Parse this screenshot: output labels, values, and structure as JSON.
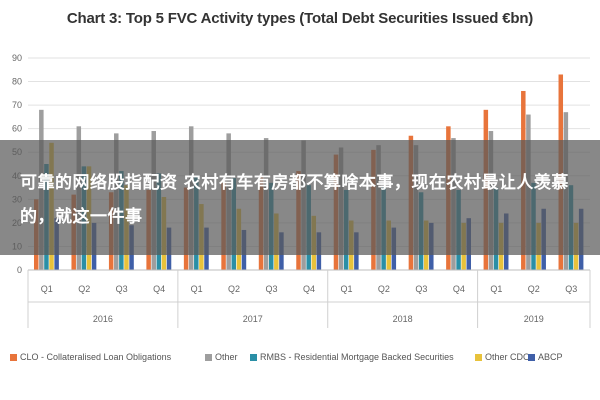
{
  "chart_data": {
    "type": "bar",
    "title": "Chart 3: Top 5 FVC Activity types (Total Debt Securities Issued €bn)",
    "xlabel": "",
    "ylabel": "",
    "ylim": [
      0,
      90
    ],
    "yticks": [
      0,
      10,
      20,
      30,
      40,
      50,
      60,
      70,
      80,
      90
    ],
    "grid": true,
    "legend_position": "bottom",
    "categories": [
      "Q1",
      "Q2",
      "Q3",
      "Q4",
      "Q1",
      "Q2",
      "Q3",
      "Q4",
      "Q1",
      "Q2",
      "Q3",
      "Q4",
      "Q1",
      "Q2",
      "Q3"
    ],
    "groups": [
      {
        "label": "2016",
        "span": 4
      },
      {
        "label": "2017",
        "span": 4
      },
      {
        "label": "2018",
        "span": 4
      },
      {
        "label": "2019",
        "span": 3
      }
    ],
    "series": [
      {
        "name": "CLO - Collateralised Loan Obligations",
        "color": "#e8743b",
        "values": [
          30,
          32,
          33,
          34,
          35,
          37,
          40,
          42,
          49,
          51,
          57,
          61,
          68,
          76,
          83
        ]
      },
      {
        "name": "Other",
        "color": "#9e9e9e",
        "values": [
          68,
          61,
          58,
          59,
          61,
          58,
          56,
          55,
          52,
          53,
          53,
          56,
          59,
          66,
          67
        ]
      },
      {
        "name": "RMBS - Residential Mortgage Backed Securities",
        "color": "#2a8fa6",
        "values": [
          45,
          44,
          42,
          41,
          40,
          39,
          37,
          36,
          34,
          35,
          33,
          34,
          35,
          37,
          36
        ]
      },
      {
        "name": "Other CDO",
        "color": "#e8c23b",
        "values": [
          54,
          44,
          36,
          31,
          28,
          26,
          24,
          23,
          21,
          21,
          21,
          20,
          20,
          20,
          20
        ]
      },
      {
        "name": "ABCP",
        "color": "#3f5fa8",
        "values": [
          22,
          20,
          19,
          18,
          18,
          17,
          16,
          16,
          16,
          18,
          20,
          22,
          24,
          26,
          26
        ]
      }
    ]
  },
  "overlay": {
    "text": "可靠的网络股指配资 农村有车有房都不算啥本事，现在农村最让人羡慕的，就这一件事"
  }
}
